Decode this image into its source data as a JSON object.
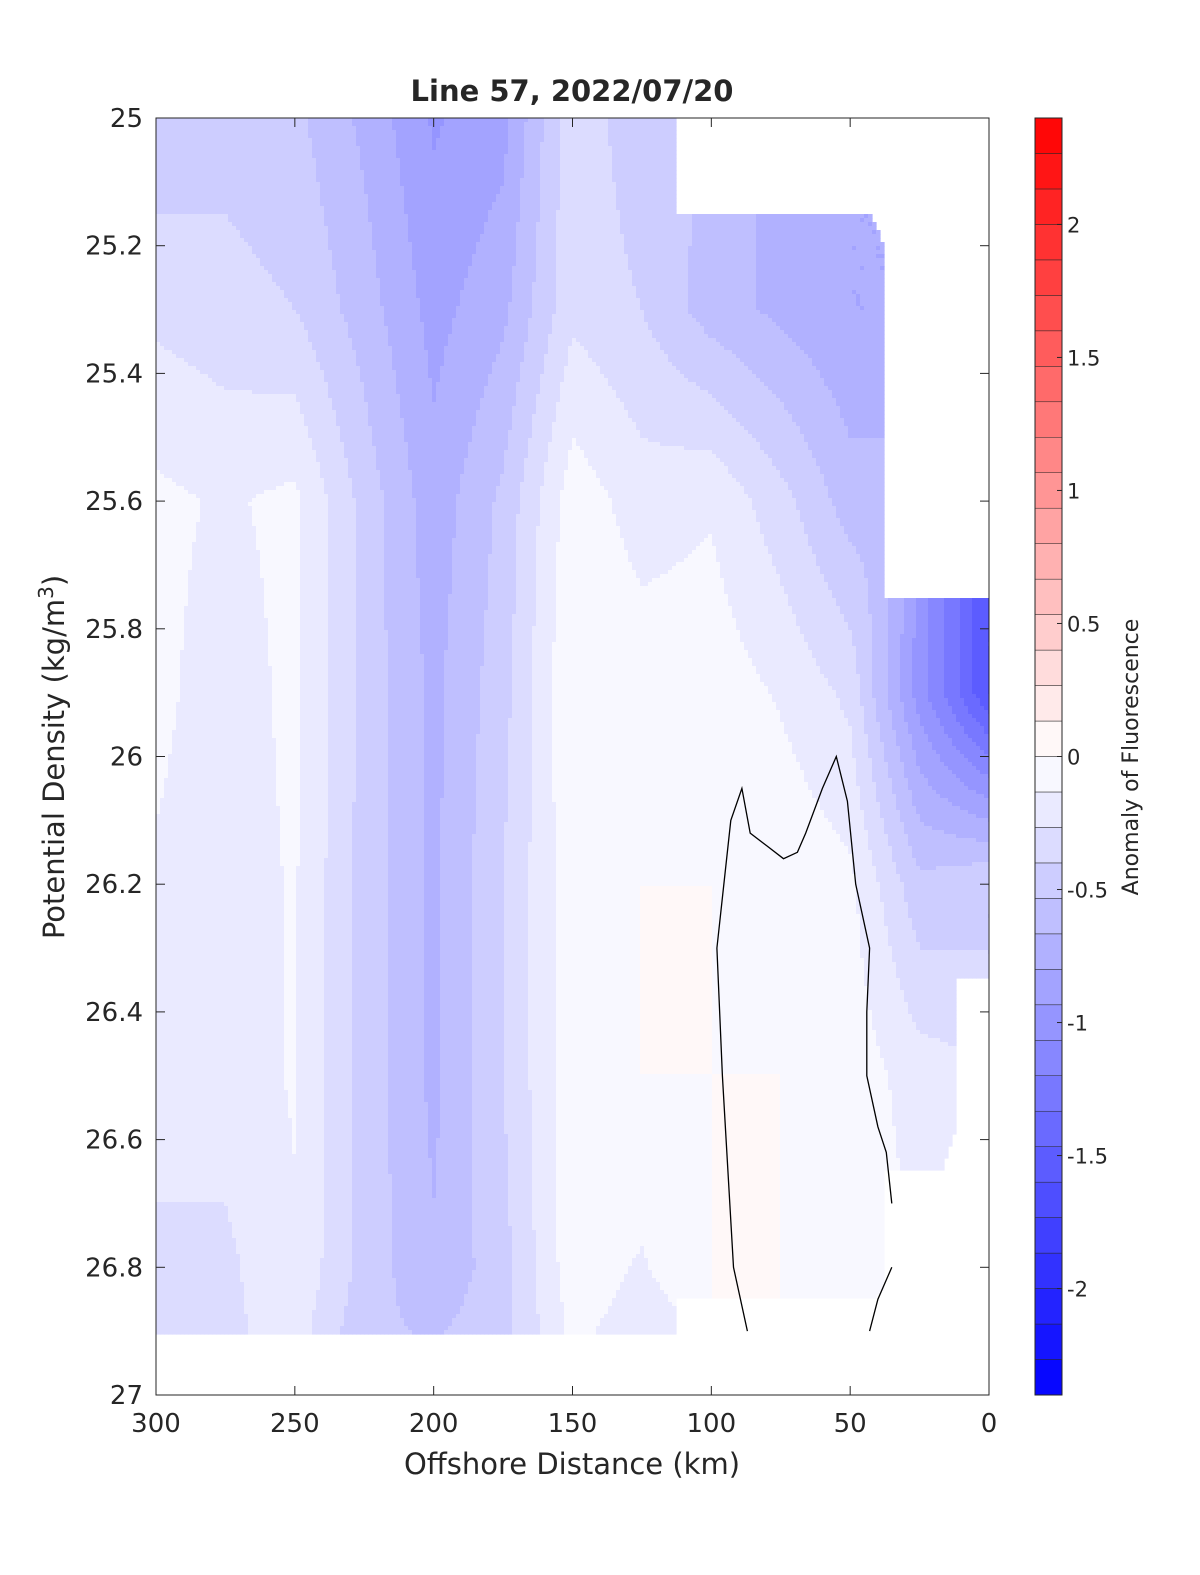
{
  "chart_data": {
    "type": "heatmap",
    "title": "Line 57, 2022/07/20",
    "xlabel": "Offshore Distance (km)",
    "ylabel_main": "Potential Density (kg/m",
    "ylabel_sup": "3",
    "ylabel_close": ")",
    "xlim": [
      300,
      0
    ],
    "ylim": [
      25,
      27
    ],
    "y_reversed": true,
    "x_ticks": [
      300,
      250,
      200,
      150,
      100,
      50,
      0
    ],
    "x_tick_labels": [
      "300",
      "250",
      "200",
      "150",
      "100",
      "50",
      "0"
    ],
    "y_ticks": [
      25,
      25.2,
      25.4,
      25.6,
      25.8,
      26,
      26.2,
      26.4,
      26.6,
      26.8,
      27
    ],
    "y_tick_labels": [
      "25",
      "25.2",
      "25.4",
      "25.6",
      "25.8",
      "26",
      "26.2",
      "26.4",
      "26.6",
      "26.8",
      "27"
    ],
    "colorbar": {
      "label": "Anomaly of Fluorescence",
      "range": [
        -2.4,
        2.4
      ],
      "levels": 36,
      "ticks": [
        -2,
        -1.5,
        -1,
        -0.5,
        0,
        0.5,
        1,
        1.5,
        2
      ],
      "tick_labels": [
        "-2",
        "-1.5",
        "-1",
        "-0.5",
        "0",
        "0.5",
        "1",
        "1.5",
        "2"
      ],
      "negative_color": "#0000ff",
      "positive_color": "#ff0000",
      "zero_color": "#ffffff"
    },
    "grid_x": [
      300,
      275,
      250,
      225,
      200,
      175,
      150,
      125,
      100,
      75,
      50,
      25,
      0
    ],
    "grid_y": [
      25.0,
      25.3,
      25.6,
      25.9,
      26.2,
      26.5,
      26.8,
      26.9
    ],
    "values": [
      [
        -0.5,
        -0.45,
        -0.5,
        -0.7,
        -0.95,
        -0.85,
        -0.3,
        -0.5,
        null,
        null,
        null,
        null,
        null
      ],
      [
        -0.3,
        -0.35,
        -0.4,
        -0.6,
        -0.85,
        -0.7,
        -0.3,
        -0.4,
        -0.6,
        -0.7,
        -0.8,
        null,
        null
      ],
      [
        -0.1,
        -0.15,
        -0.1,
        -0.45,
        -0.75,
        -0.5,
        -0.05,
        -0.2,
        -0.15,
        -0.35,
        -0.6,
        null,
        null
      ],
      [
        -0.1,
        -0.2,
        -0.1,
        -0.45,
        -0.7,
        -0.45,
        0.0,
        -0.05,
        -0.05,
        -0.15,
        -0.3,
        -1.0,
        -1.6
      ],
      [
        -0.15,
        -0.2,
        -0.12,
        -0.45,
        -0.7,
        -0.4,
        -0.05,
        0.0,
        0.0,
        -0.02,
        -0.1,
        -0.5,
        -0.4
      ],
      [
        -0.2,
        -0.2,
        -0.12,
        -0.45,
        -0.7,
        -0.4,
        -0.05,
        0.0,
        0.0,
        0.0,
        -0.05,
        -0.2,
        null
      ],
      [
        -0.3,
        -0.3,
        -0.15,
        -0.45,
        -0.65,
        -0.45,
        -0.05,
        -0.15,
        0.0,
        0.0,
        -0.05,
        null,
        null
      ],
      [
        -0.3,
        -0.3,
        -0.2,
        -0.5,
        -0.55,
        -0.45,
        -0.1,
        -0.2,
        null,
        null,
        null,
        null,
        null
      ]
    ],
    "contour_value": 0,
    "contour_lines": [
      [
        [
          87,
          26.9
        ],
        [
          92,
          26.8
        ],
        [
          96,
          26.5
        ],
        [
          98,
          26.3
        ],
        [
          93,
          26.1
        ],
        [
          89,
          26.05
        ],
        [
          86,
          26.12
        ],
        [
          80,
          26.14
        ],
        [
          74,
          26.16
        ],
        [
          69,
          26.15
        ],
        [
          66,
          26.12
        ],
        [
          60,
          26.05
        ],
        [
          55,
          26.0
        ],
        [
          51,
          26.07
        ],
        [
          48,
          26.2
        ],
        [
          43,
          26.3
        ],
        [
          44,
          26.4
        ],
        [
          44,
          26.5
        ],
        [
          40,
          26.58
        ],
        [
          37,
          26.62
        ],
        [
          35,
          26.7
        ]
      ],
      [
        [
          35,
          26.8
        ],
        [
          40,
          26.85
        ],
        [
          43,
          26.9
        ]
      ]
    ]
  }
}
